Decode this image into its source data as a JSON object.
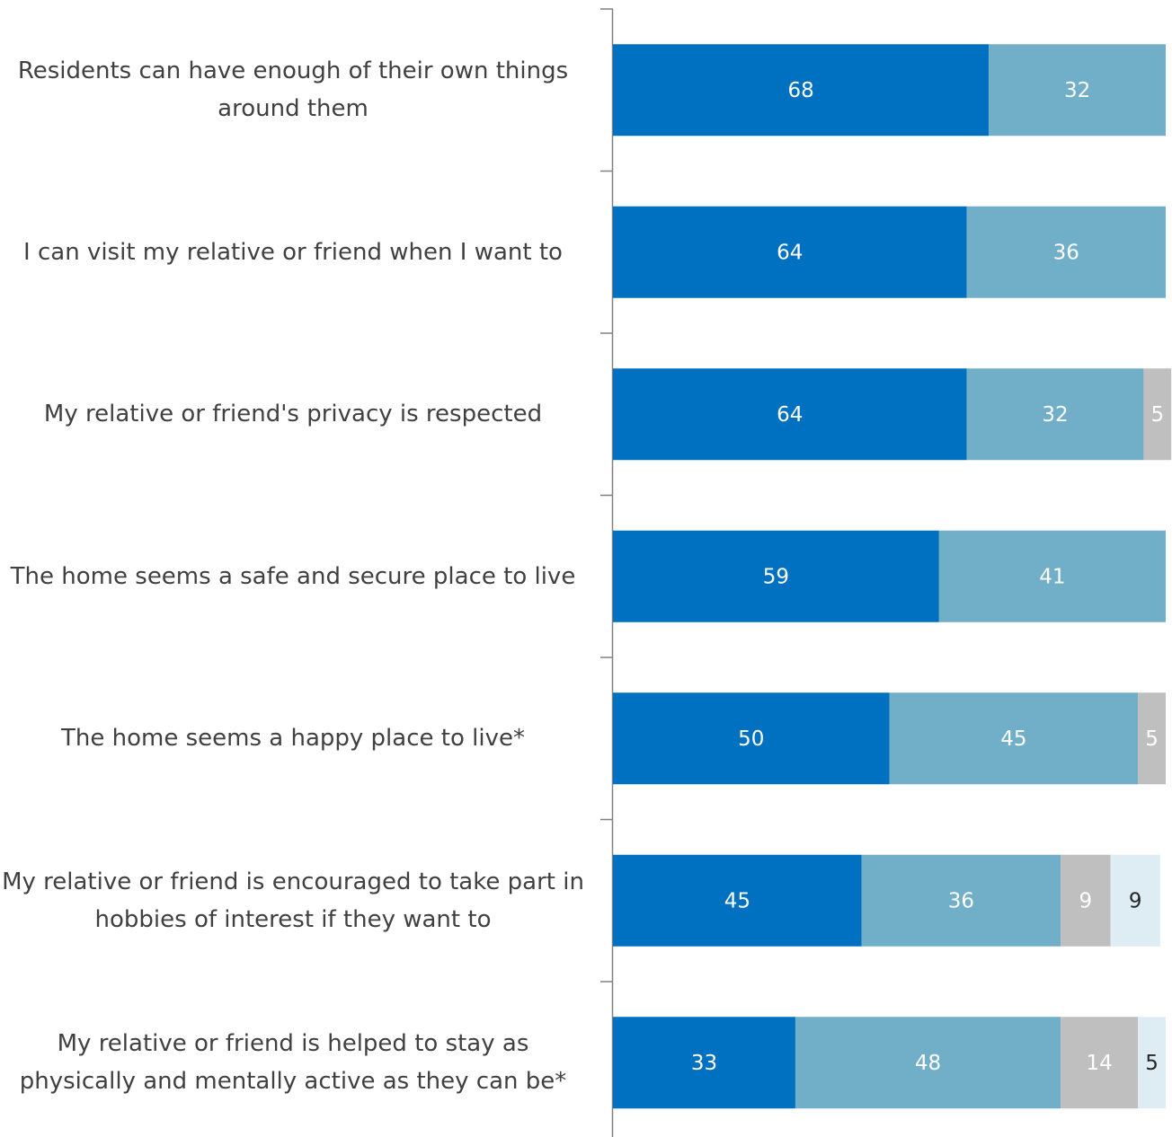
{
  "chart_data": {
    "type": "stacked-bar",
    "orientation": "horizontal",
    "categories": [
      "Residents can have enough of their own things around them",
      "I can visit my relative or friend when I want to",
      "My relative or friend's privacy is respected",
      "The home seems a safe and secure place to live",
      "The home seems a happy place to live*",
      "My relative or friend is encouraged to take part in hobbies of interest if they want to",
      "My relative or friend is helped to stay as physically and mentally active as they can be*"
    ],
    "series": [
      {
        "color": "#0070c0",
        "label_color": "#ffffff",
        "values": [
          68,
          64,
          64,
          59,
          50,
          45,
          33
        ]
      },
      {
        "color": "#71afc8",
        "label_color": "#ffffff",
        "values": [
          32,
          36,
          32,
          41,
          45,
          36,
          48
        ]
      },
      {
        "color": "#bfbfbf",
        "label_color": "#ffffff",
        "values": [
          null,
          null,
          5,
          null,
          5,
          9,
          14
        ]
      },
      {
        "color": "#deedf4",
        "label_color": "#262626",
        "values": [
          null,
          null,
          null,
          null,
          null,
          9,
          5
        ]
      }
    ],
    "xlim": [
      0,
      100
    ]
  }
}
